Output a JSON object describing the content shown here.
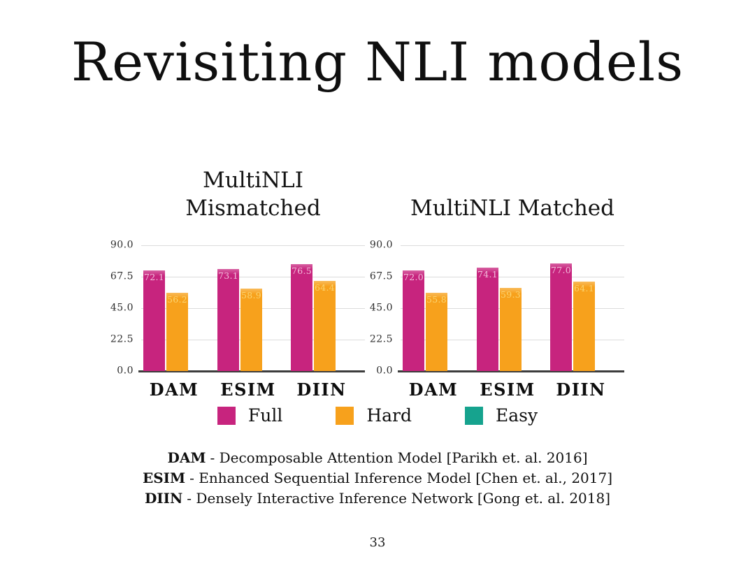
{
  "slide": {
    "title": "Revisiting NLI models",
    "page_number": "33"
  },
  "colors": {
    "full": "#C7247E",
    "hard": "#F7A11C",
    "easy": "#16A38E"
  },
  "legend": {
    "items": [
      {
        "label": "Full",
        "color": "#C7247E"
      },
      {
        "label": "Hard",
        "color": "#F7A11C"
      },
      {
        "label": "Easy",
        "color": "#16A38E"
      }
    ]
  },
  "chart_data": [
    {
      "type": "bar",
      "title_lines": [
        "MultiNLI",
        "Mismatched"
      ],
      "categories": [
        "DAM",
        "ESIM",
        "DIIN"
      ],
      "series": [
        {
          "name": "Full",
          "color": "#C7247E",
          "label_color": "#F2BCDB",
          "values": [
            72.1,
            73.1,
            76.5
          ]
        },
        {
          "name": "Hard",
          "color": "#F7A11C",
          "label_color": "#FBD470",
          "values": [
            56.2,
            58.9,
            64.4
          ]
        }
      ],
      "ylim": [
        0,
        90
      ],
      "ytick_labels": [
        "90.0",
        "67.5",
        "45.0",
        "22.5",
        "0.0"
      ],
      "grid": true,
      "legend_position": "bottom",
      "value_labels_shown": true
    },
    {
      "type": "bar",
      "title_lines": [
        "MultiNLI Matched"
      ],
      "categories": [
        "DAM",
        "ESIM",
        "DIIN"
      ],
      "series": [
        {
          "name": "Full",
          "color": "#C7247E",
          "label_color": "#F2BCDB",
          "values": [
            72.0,
            74.1,
            77.0
          ]
        },
        {
          "name": "Hard",
          "color": "#F7A11C",
          "label_color": "#FBD470",
          "values": [
            55.8,
            59.3,
            64.1
          ]
        }
      ],
      "ylim": [
        0,
        90
      ],
      "ytick_labels": [
        "90.0",
        "67.5",
        "45.0",
        "22.5",
        "0.0"
      ],
      "grid": true,
      "legend_position": "bottom",
      "value_labels_shown": true
    }
  ],
  "footnotes": [
    {
      "abbr": "DAM",
      "desc": "- Decomposable Attention Model [Parikh et. al. 2016]"
    },
    {
      "abbr": "ESIM",
      "desc": "- Enhanced Sequential Inference Model [Chen et. al., 2017]"
    },
    {
      "abbr": "DIIN",
      "desc": "- Densely Interactive Inference Network [Gong et. al. 2018]"
    }
  ]
}
